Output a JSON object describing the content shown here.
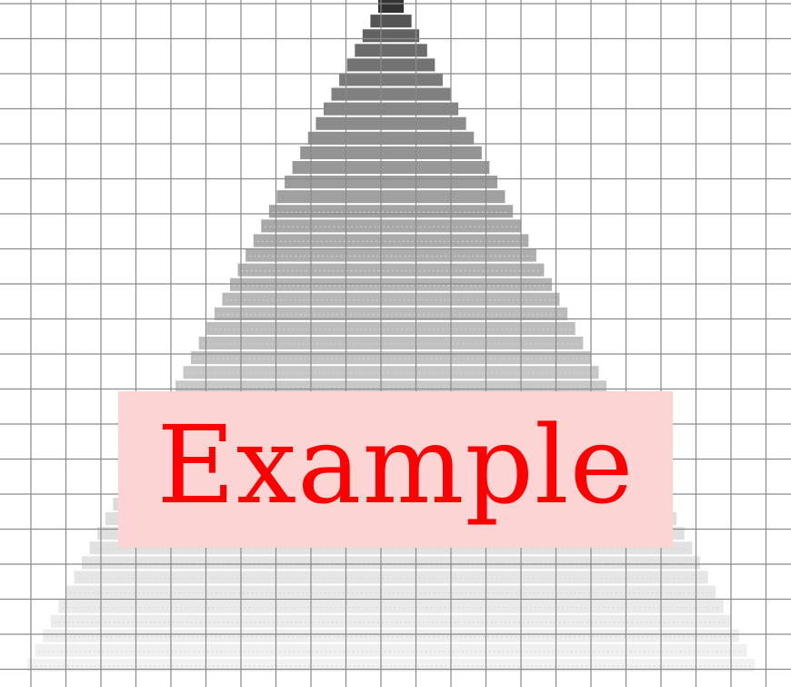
{
  "figure": {
    "description_kind": "triangular-stack-on-grid",
    "layers": 46,
    "colors": {
      "grid_line": "#8a8a8a",
      "layer_dark": "#333333",
      "layer_light": "#f2f2f2",
      "label_background": "#fcd4d4",
      "label_text": "#ff0000"
    }
  },
  "overlay": {
    "text": "Example"
  }
}
